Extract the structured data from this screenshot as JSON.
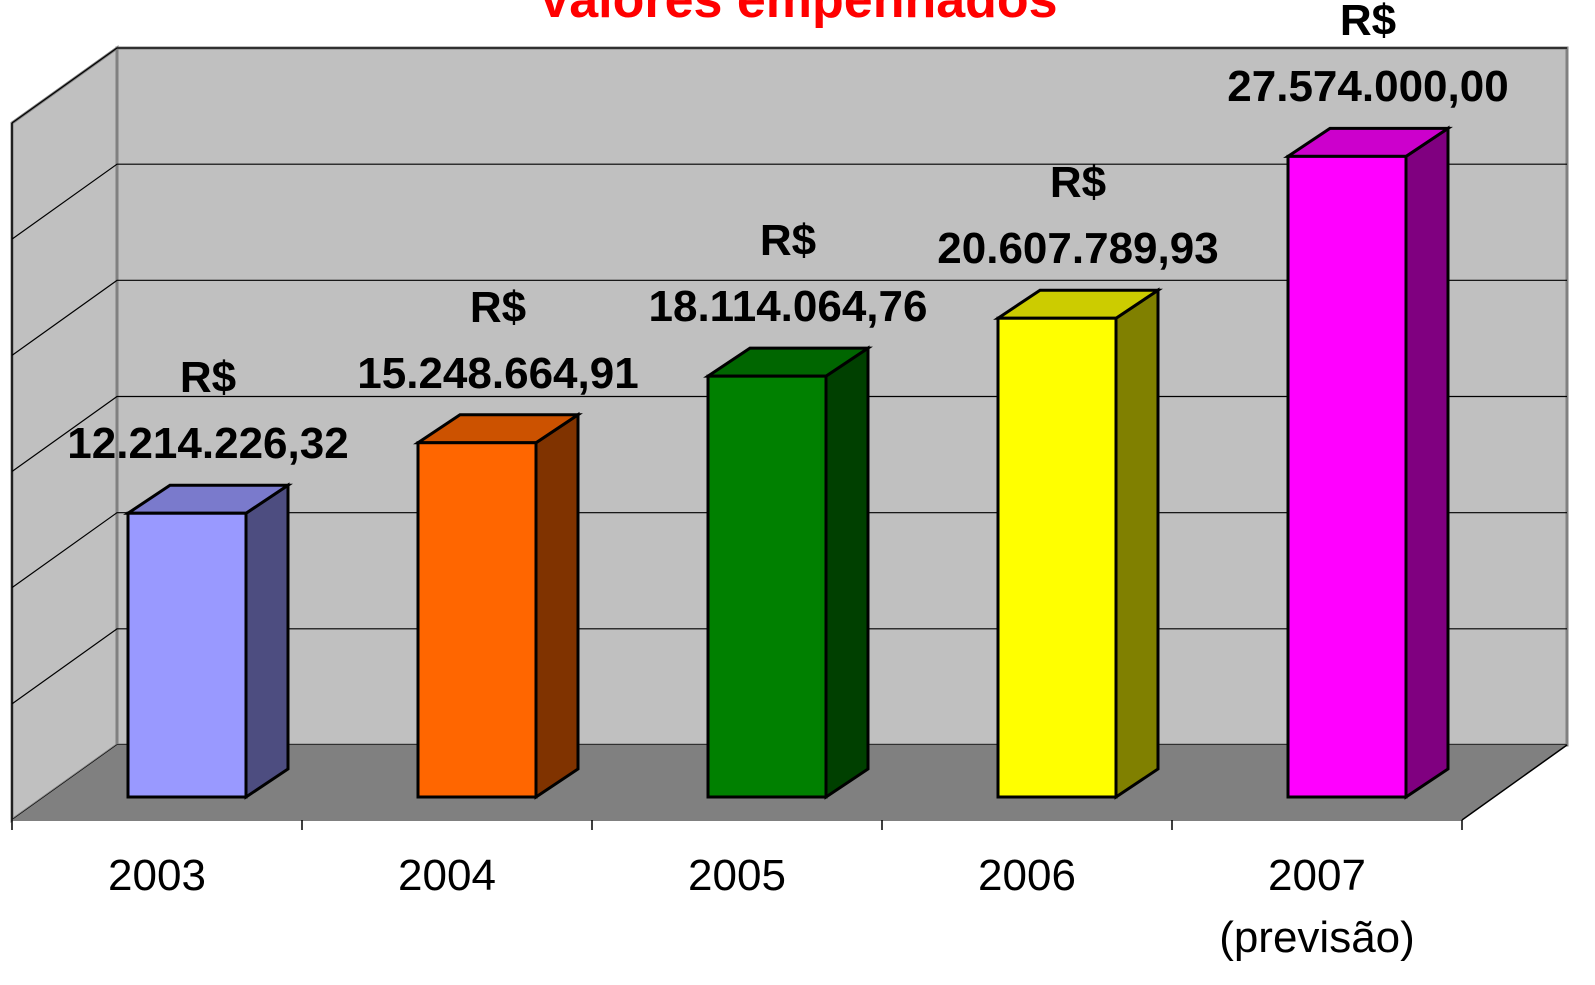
{
  "chart_data": {
    "type": "bar3d",
    "title": "Valores empenhados",
    "categories": [
      "2003",
      "2004",
      "2005",
      "2006",
      "2007 (previsão)"
    ],
    "values": [
      12214226.32,
      15248664.91,
      18114064.76,
      20607789.93,
      27574000
    ],
    "value_labels": [
      "R$ 12.214.226,32",
      "R$ 15.248.664,91",
      "R$ 18.114.064,76",
      "R$ 20.607.789,93",
      "R$ 27.574.000,00"
    ],
    "colors": [
      "#9999ff",
      "#ff6600",
      "#008000",
      "#ffff00",
      "#ff00ff"
    ],
    "ylim": [
      0,
      30000000
    ],
    "yticks": [
      0,
      5000000,
      10000000,
      15000000,
      20000000,
      25000000,
      30000000
    ],
    "grid": true
  }
}
